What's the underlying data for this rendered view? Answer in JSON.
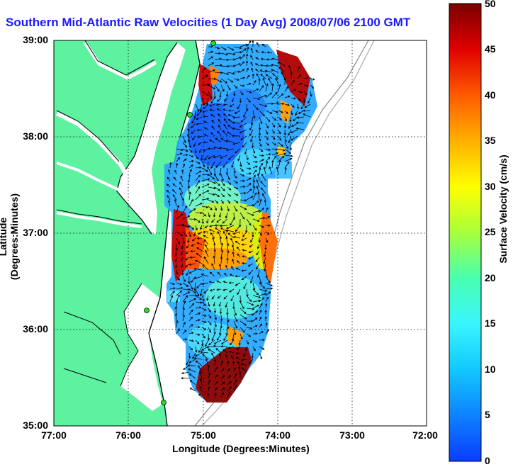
{
  "title": "Southern Mid-Atlantic Raw Velocities (1 Day Avg) 2008/07/06 2100 GMT",
  "axes": {
    "xlabel": "Longitude (Degrees:Minutes)",
    "ylabel": "Latitude (Degrees:Minutes)",
    "xticks": [
      "77:00",
      "76:00",
      "75:00",
      "74:00",
      "73:00",
      "72:00"
    ],
    "yticks": [
      "39:00",
      "38:00",
      "37:00",
      "36:00",
      "35:00"
    ],
    "xlim": [
      -77,
      -72
    ],
    "ylim": [
      35,
      39
    ]
  },
  "colorbar": {
    "label": "Surface Velocity (cm/s)",
    "ticks": [
      "50",
      "45",
      "40",
      "35",
      "30",
      "25",
      "20",
      "15",
      "10",
      "5",
      "0"
    ],
    "range": [
      0,
      50
    ]
  },
  "colors": {
    "land": "#5cf2a0",
    "title": "#1a1aff",
    "station": "#22dd22",
    "vector": "#000000"
  },
  "legend": {
    "stations": 4
  }
}
